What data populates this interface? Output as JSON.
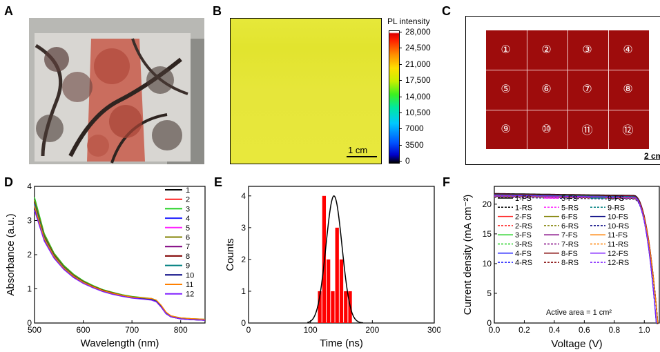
{
  "panels": {
    "A": "A",
    "B": "B",
    "C": "C",
    "D": "D",
    "E": "E",
    "F": "F"
  },
  "panel_b": {
    "colorbar_title": "PL intensity",
    "colorbar_ticks": [
      "28,000",
      "24,500",
      "21,000",
      "17,500",
      "14,000",
      "10,500",
      "7000",
      "3500",
      "0"
    ],
    "scale_bar": "1 cm"
  },
  "panel_c": {
    "cells": [
      "①",
      "②",
      "③",
      "④",
      "⑤",
      "⑥",
      "⑦",
      "⑧",
      "⑨",
      "⑩",
      "⑪",
      "⑫"
    ],
    "scale_bar": "2 cm"
  },
  "colors": {
    "cell_red": "#9e0c0c",
    "series": [
      "#000000",
      "#ff2020",
      "#20d020",
      "#2020ff",
      "#ff20ff",
      "#808000",
      "#800080",
      "#800000",
      "#008080",
      "#000080",
      "#ff8000",
      "#8020ff"
    ]
  },
  "chart_data": [
    {
      "type": "line",
      "panel": "D",
      "xlabel": "Wavelength (nm)",
      "ylabel": "Absorbance (a.u.)",
      "xlim": [
        500,
        850
      ],
      "ylim": [
        0,
        4
      ],
      "xticks": [
        "500",
        "600",
        "700",
        "800"
      ],
      "yticks": [
        "0",
        "1",
        "2",
        "3",
        "4"
      ],
      "x": [
        500,
        520,
        540,
        560,
        580,
        600,
        620,
        640,
        660,
        680,
        700,
        720,
        740,
        750,
        760,
        770,
        780,
        800,
        820,
        850
      ],
      "series": [
        {
          "name": "1",
          "values": [
            3.55,
            2.55,
            2.0,
            1.65,
            1.4,
            1.22,
            1.08,
            0.97,
            0.89,
            0.82,
            0.77,
            0.74,
            0.71,
            0.66,
            0.5,
            0.3,
            0.2,
            0.14,
            0.12,
            0.1
          ]
        },
        {
          "name": "2",
          "values": [
            3.5,
            2.52,
            1.98,
            1.63,
            1.38,
            1.2,
            1.06,
            0.95,
            0.87,
            0.8,
            0.75,
            0.72,
            0.69,
            0.64,
            0.48,
            0.29,
            0.19,
            0.13,
            0.11,
            0.09
          ]
        },
        {
          "name": "3",
          "values": [
            3.68,
            2.62,
            2.05,
            1.69,
            1.43,
            1.24,
            1.1,
            0.98,
            0.9,
            0.83,
            0.78,
            0.75,
            0.72,
            0.67,
            0.51,
            0.31,
            0.21,
            0.15,
            0.13,
            0.11
          ]
        },
        {
          "name": "4",
          "values": [
            3.48,
            2.5,
            1.96,
            1.62,
            1.37,
            1.19,
            1.05,
            0.94,
            0.86,
            0.8,
            0.75,
            0.72,
            0.69,
            0.64,
            0.48,
            0.28,
            0.19,
            0.13,
            0.11,
            0.09
          ]
        },
        {
          "name": "5",
          "values": [
            3.45,
            2.48,
            1.95,
            1.61,
            1.36,
            1.18,
            1.05,
            0.94,
            0.86,
            0.79,
            0.74,
            0.71,
            0.68,
            0.63,
            0.47,
            0.28,
            0.18,
            0.13,
            0.11,
            0.09
          ]
        },
        {
          "name": "6",
          "values": [
            3.6,
            2.58,
            2.02,
            1.66,
            1.41,
            1.22,
            1.08,
            0.97,
            0.89,
            0.82,
            0.77,
            0.74,
            0.71,
            0.66,
            0.5,
            0.3,
            0.2,
            0.14,
            0.12,
            0.1
          ]
        },
        {
          "name": "7",
          "values": [
            3.4,
            2.46,
            1.94,
            1.6,
            1.35,
            1.17,
            1.04,
            0.93,
            0.85,
            0.79,
            0.74,
            0.71,
            0.68,
            0.63,
            0.47,
            0.28,
            0.18,
            0.12,
            0.1,
            0.08
          ]
        },
        {
          "name": "8",
          "values": [
            3.52,
            2.53,
            1.99,
            1.64,
            1.39,
            1.21,
            1.07,
            0.96,
            0.88,
            0.81,
            0.76,
            0.73,
            0.7,
            0.65,
            0.49,
            0.29,
            0.19,
            0.14,
            0.12,
            0.1
          ]
        },
        {
          "name": "9",
          "values": [
            3.5,
            2.51,
            1.97,
            1.63,
            1.38,
            1.2,
            1.06,
            0.95,
            0.87,
            0.81,
            0.76,
            0.73,
            0.7,
            0.65,
            0.49,
            0.29,
            0.19,
            0.13,
            0.11,
            0.09
          ]
        },
        {
          "name": "10",
          "values": [
            3.38,
            2.44,
            1.92,
            1.59,
            1.35,
            1.17,
            1.04,
            0.93,
            0.85,
            0.79,
            0.74,
            0.71,
            0.68,
            0.63,
            0.47,
            0.27,
            0.18,
            0.12,
            0.1,
            0.08
          ]
        },
        {
          "name": "11",
          "values": [
            3.42,
            2.47,
            1.95,
            1.61,
            1.37,
            1.19,
            1.06,
            0.95,
            0.87,
            0.81,
            0.76,
            0.74,
            0.72,
            0.67,
            0.52,
            0.32,
            0.21,
            0.15,
            0.13,
            0.11
          ]
        },
        {
          "name": "12",
          "values": [
            3.3,
            2.4,
            1.9,
            1.57,
            1.33,
            1.16,
            1.03,
            0.92,
            0.84,
            0.78,
            0.73,
            0.7,
            0.67,
            0.62,
            0.46,
            0.27,
            0.18,
            0.12,
            0.1,
            0.08
          ]
        }
      ]
    },
    {
      "type": "bar",
      "panel": "E",
      "xlabel": "Time (ns)",
      "ylabel": "Counts",
      "xlim": [
        0,
        300
      ],
      "ylim": [
        0,
        4.3
      ],
      "xticks": [
        "0",
        "100",
        "200",
        "300"
      ],
      "yticks": [
        "0",
        "1",
        "2",
        "3",
        "4"
      ],
      "bin_width": 7,
      "bins": [
        {
          "x": 115,
          "count": 1
        },
        {
          "x": 122,
          "count": 4
        },
        {
          "x": 129,
          "count": 2
        },
        {
          "x": 136,
          "count": 1
        },
        {
          "x": 143,
          "count": 3
        },
        {
          "x": 150,
          "count": 2
        },
        {
          "x": 157,
          "count": 1
        },
        {
          "x": 164,
          "count": 1
        }
      ],
      "gaussian_fit": {
        "mean": 138,
        "sigma": 13,
        "amplitude": 4.0,
        "color": "#000000"
      },
      "bar_color": "#ff0000"
    },
    {
      "type": "line",
      "panel": "F",
      "xlabel": "Voltage (V)",
      "ylabel": "Current density (mA cm⁻²)",
      "xlim": [
        0,
        1.1
      ],
      "ylim": [
        0,
        23
      ],
      "xticks": [
        "0.0",
        "0.2",
        "0.4",
        "0.6",
        "0.8",
        "1.0"
      ],
      "yticks": [
        "0",
        "5",
        "10",
        "15",
        "20"
      ],
      "annotation": "Active area = 1 cm²",
      "legend": [
        "1-FS",
        "1-RS",
        "2-FS",
        "2-RS",
        "3-FS",
        "3-RS",
        "4-FS",
        "4-RS",
        "5-FS",
        "5-RS",
        "6-FS",
        "6-RS",
        "7-FS",
        "7-RS",
        "8-FS",
        "8-RS",
        "9-FS",
        "9-RS",
        "10-FS",
        "10-RS",
        "11-FS",
        "11-RS",
        "12-FS",
        "12-RS"
      ],
      "jsc": [
        21.8,
        21.6,
        21.5,
        21.4,
        21.7,
        21.6,
        21.5,
        21.7,
        21.6,
        21.3,
        21.4,
        21.5
      ],
      "voc": [
        1.09,
        1.09,
        1.09,
        1.08,
        1.09,
        1.09,
        1.09,
        1.09,
        1.08,
        1.09,
        1.09,
        1.08
      ],
      "knee_v": 0.93
    }
  ]
}
